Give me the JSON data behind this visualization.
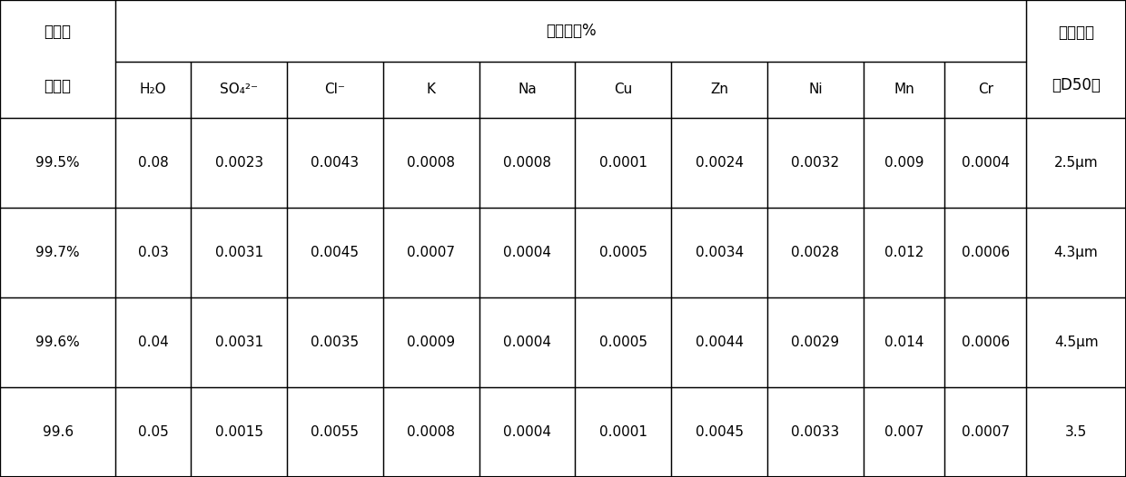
{
  "col1_header_line1": "草酸亚",
  "col1_header_line2": "铁含量",
  "mid_header": "杂质含量%",
  "last_header_line1": "平均粒径",
  "last_header_line2": "（D50）",
  "sub_headers": [
    "H₂O",
    "SO₄²⁻",
    "Cl⁻",
    "K",
    "Na",
    "Cu",
    "Zn",
    "Ni",
    "Mn",
    "Cr"
  ],
  "data_rows": [
    [
      "99.5%",
      "0.08",
      "0.0023",
      "0.0043",
      "0.0008",
      "0.0008",
      "0.0001",
      "0.0024",
      "0.0032",
      "0.009",
      "0.0004",
      "2.5μm"
    ],
    [
      "99.7%",
      "0.03",
      "0.0031",
      "0.0045",
      "0.0007",
      "0.0004",
      "0.0005",
      "0.0034",
      "0.0028",
      "0.012",
      "0.0006",
      "4.3μm"
    ],
    [
      "99.6%",
      "0.04",
      "0.0031",
      "0.0035",
      "0.0009",
      "0.0004",
      "0.0005",
      "0.0044",
      "0.0029",
      "0.014",
      "0.0006",
      "4.5μm"
    ],
    [
      "99.6",
      "0.05",
      "0.0015",
      "0.0055",
      "0.0008",
      "0.0004",
      "0.0001",
      "0.0045",
      "0.0033",
      "0.007",
      "0.0007",
      "3.5"
    ]
  ],
  "bg_color": "#ffffff",
  "text_color": "#000000",
  "line_color": "#000000",
  "font_size": 11,
  "header_font_size": 12
}
